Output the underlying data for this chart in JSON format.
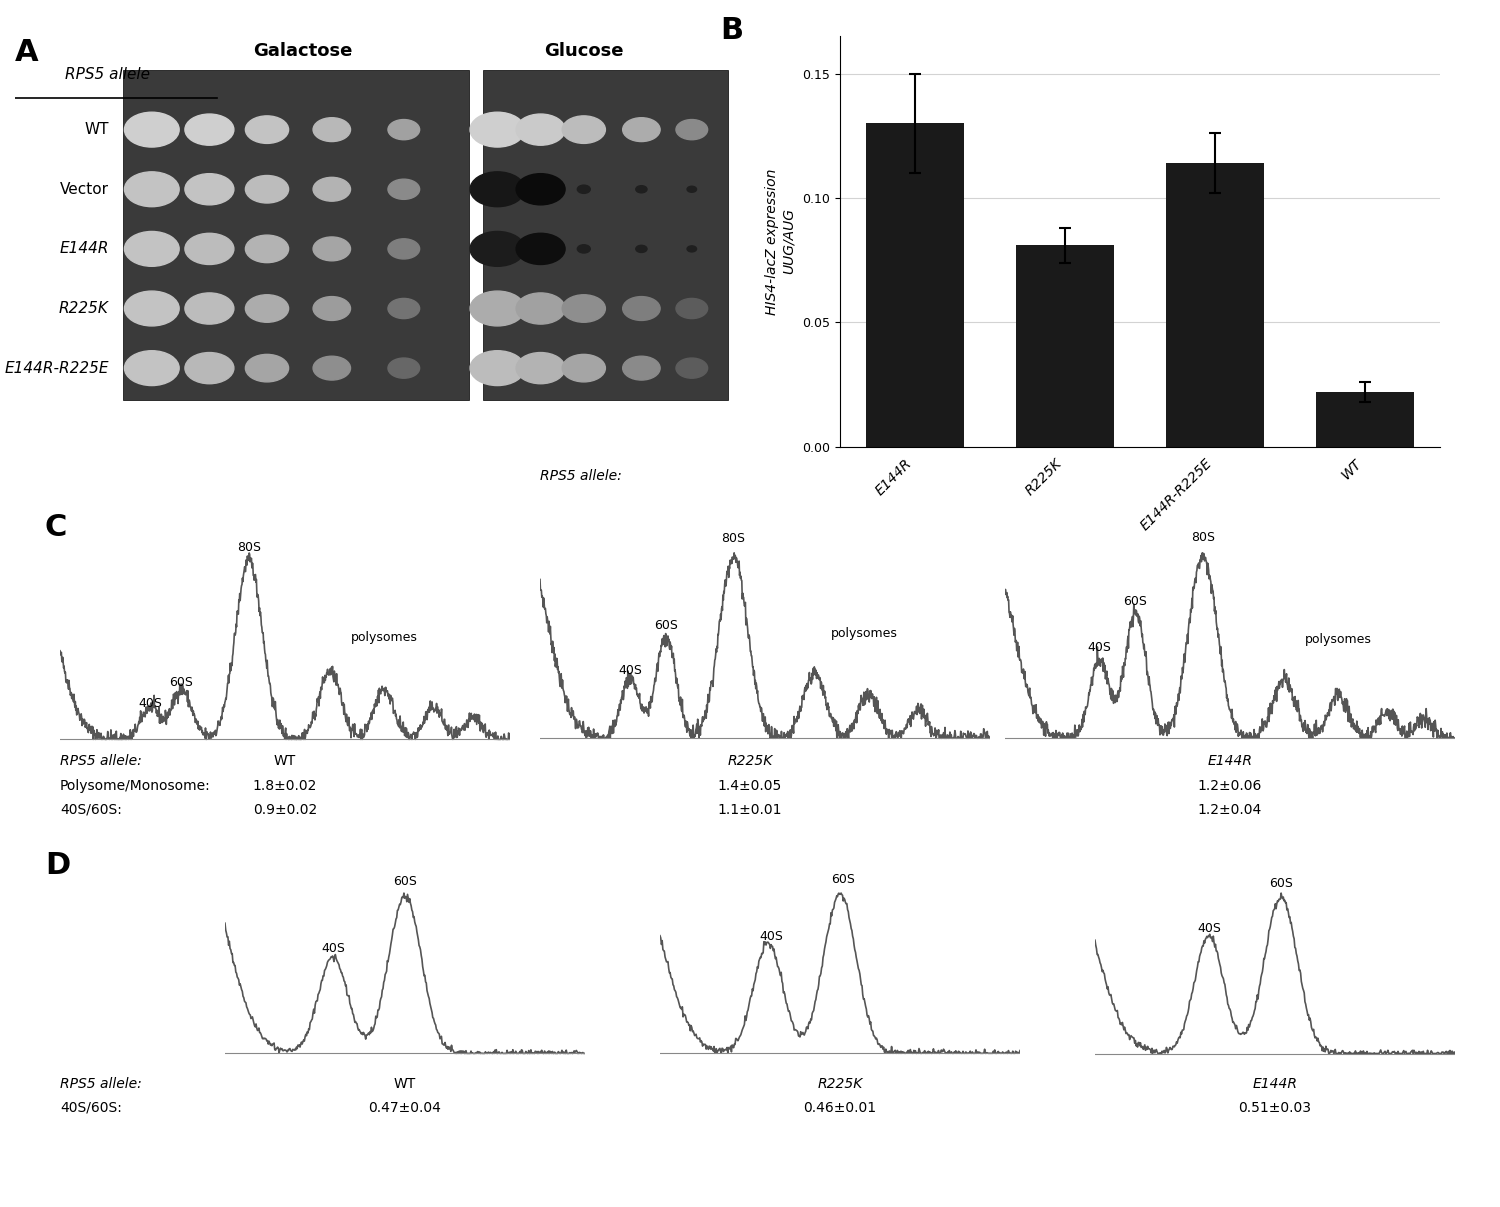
{
  "panel_A": {
    "title": "A",
    "rps5_label": "RPS5 allele",
    "conditions": [
      "Galactose",
      "Glucose"
    ],
    "rows": [
      "WT",
      "Vector",
      "E144R",
      "R225K",
      "E144R-R225E"
    ],
    "n_spots": 5
  },
  "panel_B": {
    "title": "B",
    "ylabel_line1": "HIS4-lacZ expression",
    "ylabel_line2": "UUG/AUG",
    "xlabel": "RPS5 allele:",
    "categories": [
      "E144R",
      "R225K",
      "E144R-R225E",
      "WT"
    ],
    "values": [
      0.13,
      0.081,
      0.114,
      0.022
    ],
    "errors": [
      0.02,
      0.007,
      0.012,
      0.004
    ],
    "ylim": [
      0,
      0.165
    ],
    "yticks": [
      0,
      0.05,
      0.1,
      0.15
    ],
    "bar_color": "#1a1a1a"
  },
  "panel_C": {
    "title": "C",
    "alleles": [
      "WT",
      "R225K",
      "E144R"
    ],
    "stats_row1": "RPS5 allele:",
    "stats_row2": "Polysome/Monosome:",
    "stats_row3": "40S/60S:",
    "stats": {
      "WT": {
        "pm": "1.8±0.02",
        "ratio": "0.9±0.02"
      },
      "R225K": {
        "pm": "1.4±0.05",
        "ratio": "1.1±0.01"
      },
      "E144R": {
        "pm": "1.2±0.06",
        "ratio": "1.2±0.04"
      }
    }
  },
  "panel_D": {
    "title": "D",
    "alleles": [
      "WT",
      "R225K",
      "E144R"
    ],
    "stats_row1": "RPS5 allele:",
    "stats_row2": "40S/60S:",
    "stats": {
      "WT": {
        "ratio": "0.47±0.04"
      },
      "R225K": {
        "ratio": "0.46±0.01"
      },
      "E144R": {
        "ratio": "0.51±0.03"
      }
    }
  },
  "background_color": "#ffffff",
  "text_color": "#000000"
}
